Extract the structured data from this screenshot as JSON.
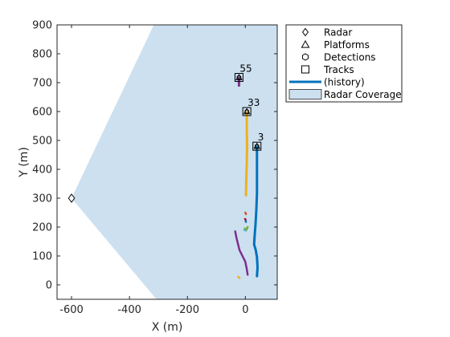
{
  "chart_data": {
    "type": "scatter",
    "xlabel": "X (m)",
    "ylabel": "Y (m)",
    "xlim": [
      -650,
      110
    ],
    "ylim": [
      -50,
      900
    ],
    "xticks": [
      -600,
      -400,
      -200,
      0
    ],
    "xtick_labels": [
      "-600",
      "-400",
      "-200",
      "0"
    ],
    "yticks": [
      0,
      100,
      200,
      300,
      400,
      500,
      600,
      700,
      800,
      900
    ],
    "ytick_labels": [
      "0",
      "100",
      "200",
      "300",
      "400",
      "500",
      "600",
      "700",
      "800",
      "900"
    ],
    "grid": false,
    "legend_position": "outside-right-top",
    "radar": {
      "x": -600,
      "y": 300
    },
    "radar_coverage": {
      "color": "#cce0f0",
      "polygon": [
        [
          -600,
          300
        ],
        [
          -316,
          900
        ],
        [
          110,
          900
        ],
        [
          110,
          -50
        ],
        [
          -307,
          -50
        ]
      ]
    },
    "tracks": [
      {
        "label": "3",
        "position": {
          "x": 40,
          "y": 480
        },
        "color": "#0072bd",
        "history": [
          [
            40,
            30
          ],
          [
            42,
            60
          ],
          [
            40,
            95
          ],
          [
            36,
            120
          ],
          [
            30,
            140
          ],
          [
            32,
            170
          ],
          [
            35,
            210
          ],
          [
            38,
            260
          ],
          [
            40,
            320
          ],
          [
            40,
            380
          ],
          [
            40,
            430
          ],
          [
            40,
            478
          ]
        ]
      },
      {
        "label": "33",
        "position": {
          "x": 5,
          "y": 600
        },
        "color": "#edb120",
        "history": [
          [
            2,
            310
          ],
          [
            3,
            360
          ],
          [
            5,
            420
          ],
          [
            6,
            480
          ],
          [
            5,
            540
          ],
          [
            5,
            598
          ]
        ]
      },
      {
        "label": "55",
        "position": {
          "x": -22,
          "y": 718
        },
        "color": "#7e2f8e",
        "history": [
          [
            -22,
            690
          ],
          [
            -22,
            705
          ],
          [
            -22,
            716
          ]
        ]
      }
    ],
    "short_histories": [
      {
        "color": "#7e2f8e",
        "points": [
          [
            -35,
            185
          ],
          [
            -30,
            160
          ],
          [
            -20,
            120
          ],
          [
            -10,
            100
          ],
          [
            0,
            80
          ],
          [
            5,
            55
          ],
          [
            8,
            35
          ]
        ]
      },
      {
        "color": "#edb120",
        "points": [
          [
            -25,
            28
          ],
          [
            -20,
            24
          ]
        ]
      },
      {
        "color": "#77ac30",
        "points": [
          [
            -2,
            195
          ],
          [
            2,
            188
          ],
          [
            8,
            200
          ]
        ]
      },
      {
        "color": "#4dbeee",
        "points": [
          [
            -4,
            190
          ],
          [
            0,
            188
          ]
        ]
      },
      {
        "color": "#d95319",
        "points": [
          [
            0,
            250
          ],
          [
            2,
            245
          ]
        ]
      },
      {
        "color": "#a2142f",
        "points": [
          [
            -1,
            228
          ],
          [
            1,
            225
          ]
        ]
      },
      {
        "color": "#0072bd",
        "points": [
          [
            1,
            220
          ],
          [
            2,
            218
          ]
        ]
      }
    ],
    "legend": [
      {
        "label": "Radar",
        "marker": "diamond"
      },
      {
        "label": "Platforms",
        "marker": "triangle"
      },
      {
        "label": "Detections",
        "marker": "hexagon"
      },
      {
        "label": "Tracks",
        "marker": "square"
      },
      {
        "label": "(history)",
        "marker": "line",
        "color": "#0072bd"
      },
      {
        "label": "Radar Coverage",
        "marker": "patch",
        "color": "#cce0f0"
      }
    ]
  }
}
